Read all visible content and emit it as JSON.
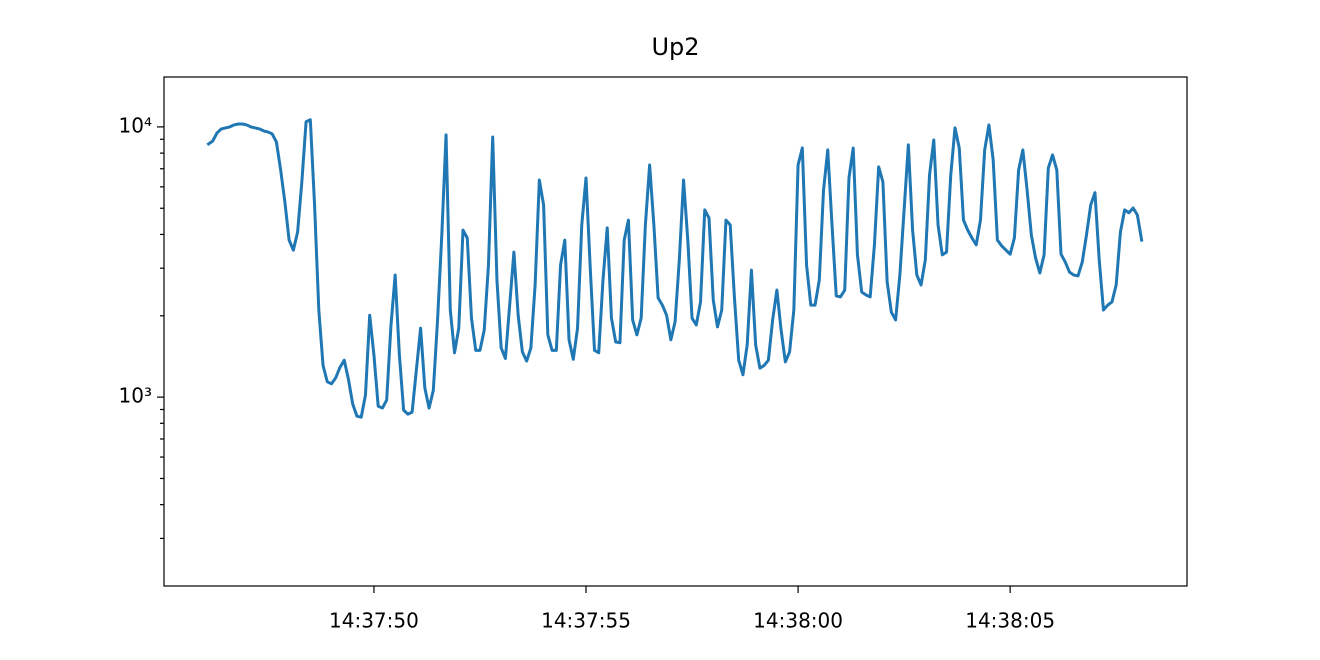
{
  "chart_data": {
    "type": "line",
    "title": "Up2",
    "color": "#1f77b4",
    "yscale": "log",
    "x": [
      46.1,
      46.2,
      46.3,
      46.4,
      46.5,
      46.6,
      46.7,
      46.8,
      46.9,
      47.0,
      47.1,
      47.2,
      47.3,
      47.4,
      47.5,
      47.6,
      47.7,
      47.8,
      47.9,
      48.0,
      48.1,
      48.2,
      48.3,
      48.4,
      48.5,
      48.6,
      48.7,
      48.8,
      48.9,
      49.0,
      49.1,
      49.2,
      49.3,
      49.4,
      49.5,
      49.6,
      49.7,
      49.8,
      49.9,
      50.0,
      50.1,
      50.2,
      50.3,
      50.4,
      50.5,
      50.6,
      50.7,
      50.8,
      50.9,
      51.0,
      51.1,
      51.2,
      51.3,
      51.4,
      51.5,
      51.6,
      51.7,
      51.8,
      51.9,
      52.0,
      52.1,
      52.2,
      52.3,
      52.4,
      52.5,
      52.6,
      52.7,
      52.8,
      52.9,
      53.0,
      53.1,
      53.2,
      53.3,
      53.4,
      53.5,
      53.6,
      53.7,
      53.8,
      53.9,
      54.0,
      54.1,
      54.2,
      54.3,
      54.4,
      54.5,
      54.6,
      54.7,
      54.8,
      54.9,
      55.0,
      55.1,
      55.2,
      55.3,
      55.4,
      55.5,
      55.6,
      55.7,
      55.8,
      55.9,
      56.0,
      56.1,
      56.2,
      56.3,
      56.4,
      56.5,
      56.6,
      56.7,
      56.8,
      56.9,
      57.0,
      57.1,
      57.2,
      57.3,
      57.4,
      57.5,
      57.6,
      57.7,
      57.8,
      57.9,
      58.0,
      58.1,
      58.2,
      58.3,
      58.4,
      58.5,
      58.6,
      58.7,
      58.8,
      58.9,
      59.0,
      59.1,
      59.2,
      59.3,
      59.4,
      59.5,
      59.6,
      59.7,
      59.8,
      59.9,
      60.0,
      60.1,
      60.2,
      60.3,
      60.4,
      60.5,
      60.6,
      60.7,
      60.8,
      60.9,
      61.0,
      61.1,
      61.2,
      61.3,
      61.4,
      61.5,
      61.6,
      61.7,
      61.8,
      61.9,
      62.0,
      62.1,
      62.2,
      62.3,
      62.4,
      62.5,
      62.6,
      62.7,
      62.8,
      62.9,
      63.0,
      63.1,
      63.2,
      63.3,
      63.4,
      63.5,
      63.6,
      63.7,
      63.8,
      63.9,
      64.0,
      64.1,
      64.2,
      64.3,
      64.4,
      64.5,
      64.6,
      64.7,
      64.8,
      64.9,
      65.0,
      65.1,
      65.2,
      65.3,
      65.4,
      65.5,
      65.6,
      65.7,
      65.8,
      65.9,
      66.0,
      66.1,
      66.2,
      66.3,
      66.4,
      66.5,
      66.6,
      66.7,
      66.8,
      66.9,
      67.0,
      67.1,
      67.2,
      67.3,
      67.4,
      67.5,
      67.6,
      67.7,
      67.8,
      67.9,
      68.0,
      68.1
    ],
    "values": [
      8650,
      8870,
      9500,
      9830,
      9915,
      10000,
      10170,
      10250,
      10250,
      10170,
      10000,
      9915,
      9830,
      9665,
      9580,
      9420,
      8800,
      6930,
      5270,
      3810,
      3500,
      4080,
      6260,
      10450,
      10630,
      5140,
      2100,
      1310,
      1140,
      1120,
      1180,
      1290,
      1370,
      1160,
      942,
      850,
      843,
      1017,
      2010,
      1430,
      926,
      911,
      975,
      1830,
      2830,
      1430,
      895,
      865,
      880,
      1260,
      1800,
      1080,
      911,
      1060,
      1930,
      3980,
      9340,
      2100,
      1460,
      1800,
      4150,
      3880,
      1960,
      1490,
      1490,
      1770,
      3080,
      9180,
      2710,
      1520,
      1390,
      2190,
      3440,
      2010,
      1470,
      1360,
      1520,
      2600,
      6360,
      5140,
      1700,
      1490,
      1490,
      3080,
      3810,
      1630,
      1380,
      1800,
      4340,
      6470,
      3000,
      1490,
      1460,
      2710,
      4230,
      1960,
      1600,
      1590,
      3810,
      4520,
      1930,
      1700,
      1960,
      4340,
      7230,
      4340,
      2330,
      2190,
      2010,
      1630,
      1900,
      3220,
      6360,
      3810,
      1960,
      1850,
      2250,
      4930,
      4600,
      2290,
      1820,
      2100,
      4520,
      4340,
      2330,
      1370,
      1210,
      1560,
      2950,
      1560,
      1280,
      1310,
      1370,
      1930,
      2490,
      1770,
      1350,
      1470,
      2100,
      7230,
      8360,
      3080,
      2190,
      2190,
      2710,
      5840,
      8220,
      4340,
      2370,
      2350,
      2490,
      6470,
      8360,
      3360,
      2450,
      2390,
      2350,
      3660,
      7110,
      6260,
      2670,
      2060,
      1930,
      2830,
      4930,
      8580,
      4150,
      2830,
      2600,
      3220,
      6640,
      8950,
      4340,
      3360,
      3440,
      6640,
      9915,
      8360,
      4520,
      4150,
      3880,
      3660,
      4520,
      8220,
      10170,
      7550,
      3810,
      3630,
      3500,
      3380,
      3880,
      6930,
      8220,
      5840,
      3980,
      3270,
      2880,
      3360,
      7040,
      7880,
      6930,
      3380,
      3160,
      2900,
      2830,
      2810,
      3160,
      3980,
      5140,
      5710,
      3220,
      2100,
      2190,
      2250,
      2600,
      4080,
      4930,
      4810,
      5010,
      4720,
      3810
    ],
    "xlim": [
      45.05,
      69.17
    ],
    "xticks": [
      {
        "value": 50,
        "label": "14:37:50"
      },
      {
        "value": 55,
        "label": "14:37:55"
      },
      {
        "value": 60,
        "label": "14:38:00"
      },
      {
        "value": 65,
        "label": "14:38:05"
      }
    ],
    "ylim": [
      200,
      15300
    ],
    "yticks": [
      {
        "value": 1000,
        "label": "10³"
      },
      {
        "value": 10000,
        "label": "10⁴"
      }
    ],
    "yticks_minor": [
      300,
      400,
      500,
      600,
      700,
      800,
      900,
      2000,
      3000,
      4000,
      5000,
      6000,
      7000,
      8000,
      9000
    ]
  }
}
